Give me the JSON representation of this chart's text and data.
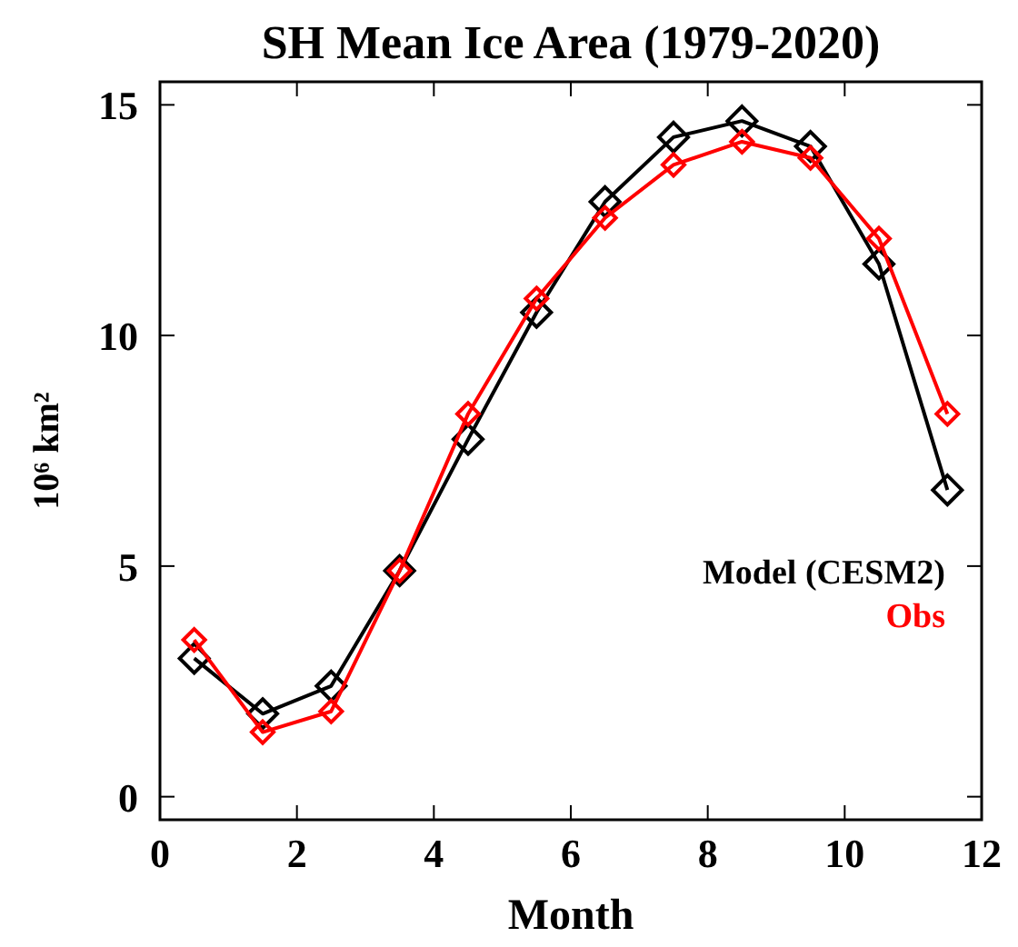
{
  "chart_data": {
    "type": "line",
    "title": "SH Mean Ice Area (1979-2020)",
    "xlabel": "Month",
    "ylabel": "10⁶ km²",
    "x": [
      0.5,
      1.5,
      2.5,
      3.5,
      4.5,
      5.5,
      6.5,
      7.5,
      8.5,
      9.5,
      10.5,
      11.5
    ],
    "series": [
      {
        "name": "Model (CESM2)",
        "color": "#000000",
        "values": [
          3.0,
          1.8,
          2.4,
          4.9,
          7.75,
          10.5,
          12.9,
          14.3,
          14.65,
          14.1,
          11.55,
          6.65
        ]
      },
      {
        "name": "Obs",
        "color": "#ff0000",
        "values": [
          3.4,
          1.4,
          1.85,
          4.9,
          8.3,
          10.8,
          12.55,
          13.7,
          14.2,
          13.85,
          12.1,
          8.3
        ]
      }
    ],
    "xlim": [
      0,
      12
    ],
    "xticks": [
      0,
      2,
      4,
      6,
      8,
      10,
      12
    ],
    "ylim": [
      -0.5,
      15.5
    ],
    "yticks": [
      0,
      5,
      10,
      15
    ],
    "grid": false,
    "legend": "right",
    "marker": "diamond",
    "line_style": "solid"
  }
}
